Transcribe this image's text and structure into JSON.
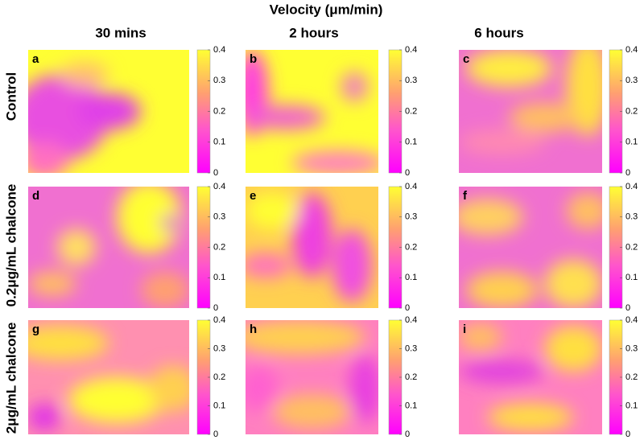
{
  "figure": {
    "title": "Velocity (μm/min)",
    "columns": [
      "30 mins",
      "2 hours",
      "6 hours"
    ],
    "rows": [
      "Control",
      "0.2μg/mL chalcone",
      "2μg/mL chalcone"
    ],
    "panels": [
      "a",
      "b",
      "c",
      "d",
      "e",
      "f",
      "g",
      "h",
      "i"
    ],
    "colorbar": {
      "lim": [
        0,
        0.4
      ],
      "ticks": [
        0,
        0.1,
        0.2,
        0.3,
        0.4
      ]
    }
  }
}
